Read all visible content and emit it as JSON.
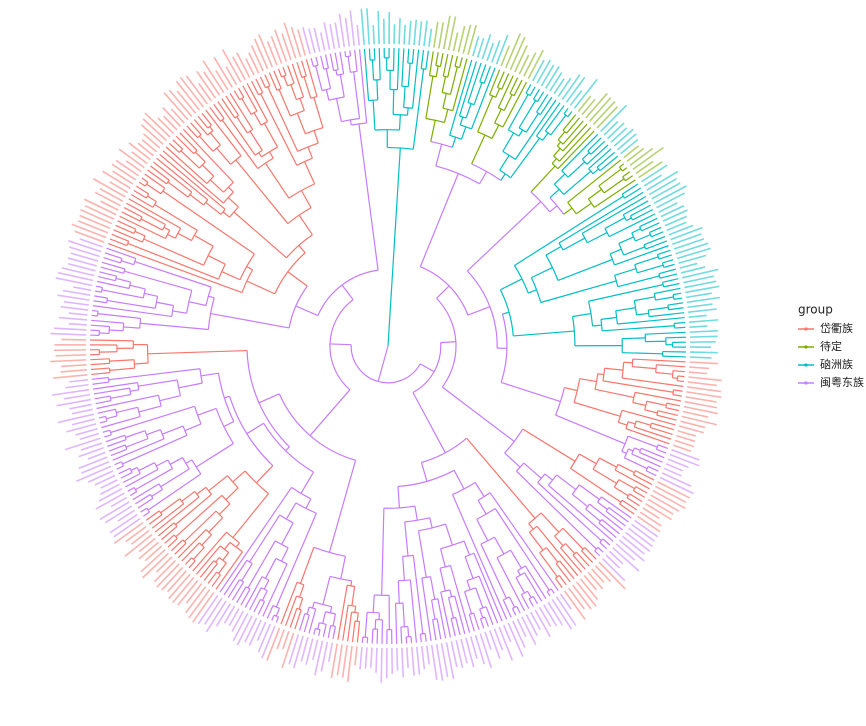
{
  "legend": {
    "title": "group",
    "items": [
      {
        "name": "岱衢族",
        "color": "#F8766D"
      },
      {
        "name": "待定",
        "color": "#7CAE00"
      },
      {
        "name": "硇洲族",
        "color": "#00BFC4"
      },
      {
        "name": "闽粤东族",
        "color": "#C77CFF"
      }
    ]
  }
}
